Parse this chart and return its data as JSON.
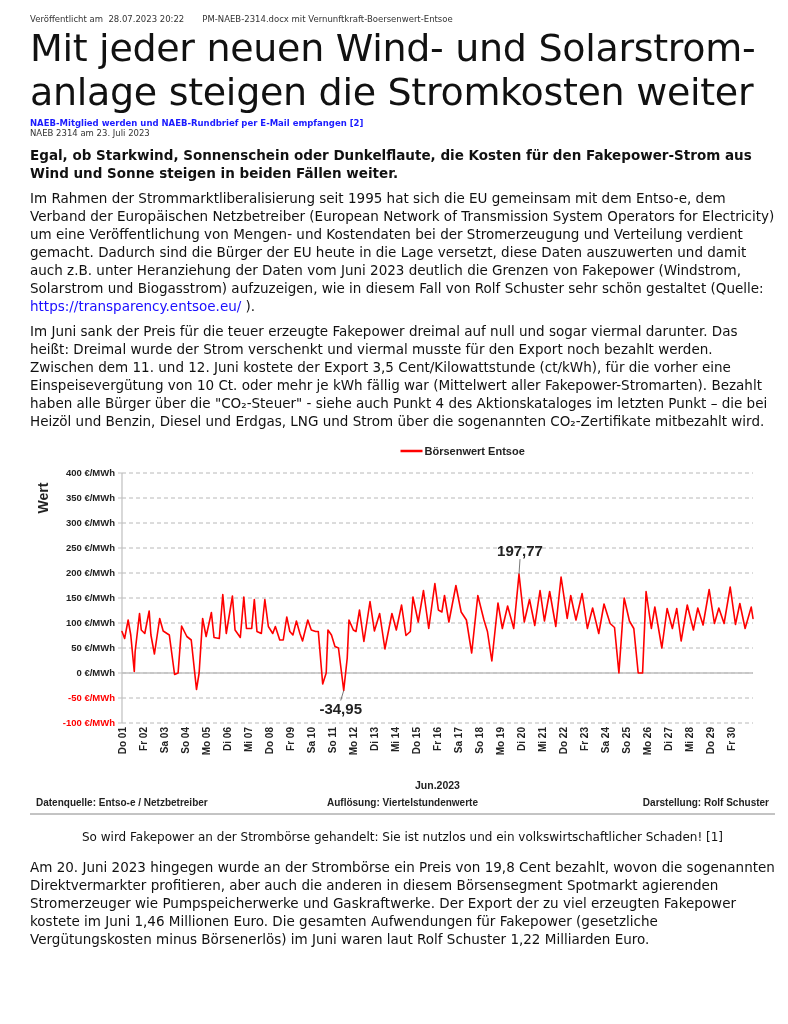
{
  "chart_data": {
    "type": "line",
    "title": "Mit jeder neuen Wind- und Solarstrom-anlage steigen die Stromkosten weiter",
    "subtitle": "Egal, ob Starkwind, Sonnenschein oder Dunkelflaute, die Kosten für den Fakepower-Strom aus Wind und Sonne steigen in beiden Fällen weiter.",
    "xlabel": "Jun.2023",
    "ylabel": "Wert",
    "annotations": [
      "Veröffentlicht am  28.07.2023 20:22",
      "PM-NAEB-2314.docx mit Vernunftkraft-Boersenwert-Entsoe",
      "NAEB-Mitglied werden und NAEB-Rundbrief per E-Mail empfangen [2]",
      "NAEB 2314 am 23. Juli 2023",
      "Im Rahmen der Strommarktliberalisierung seit 1995 hat sich die EU gemeinsam mit dem Entso-e, dem Verband der Europäischen Netzbetreiber (European Network of Transmission System Operators for Electricity) um eine Veröffentlichung von Mengen- und Kostendaten bei der Stromerzeugung und Verteilung verdient gemacht. Dadurch sind die Bürger der EU heute in die Lage versetzt, diese Daten auszuwerten und damit auch z.B. unter Heranziehung der Daten vom Juni 2023 deutlich die Grenzen von Fakepower (Windstrom, Solarstrom und Biogasstrom) aufzuzeigen, wie in diesem Fall von Rolf Schuster sehr schön gestaltet (Quelle: https://transparency.entsoe.eu/ ).",
      "Im Juni sank der Preis für die teuer erzeugte Fakepower dreimal auf null und sogar viermal darunter. Das heißt: Dreimal wurde der Strom verschenkt und viermal musste für den Export noch bezahlt werden. Zwischen dem 11. und 12. Juni kostete der Export 3,5 Cent/Kilowattstunde (ct/kWh), für die vorher eine Einspeisevergütung von 10 Ct. oder mehr je kWh fällig war (Mittelwert aller Fakepower-Stromarten). Bezahlt haben alle Bürger über die \"CO₂-Steuer\" - siehe auch Punkt 4 des Aktionskataloges im letzten Punkt – die bei Heizöl und Benzin, Diesel und Erdgas, LNG und Strom über die sogenannten CO₂-Zertifikate mitbezahlt wird.",
      "Datenquelle: Entso-e / Netzbetreiber",
      "Auflösung: Viertelstundenwerte",
      "Darstellung: Rolf Schuster",
      "So wird Fakepower an der Strombörse gehandelt: Sie ist nutzlos und ein volkswirtschaftlicher Schaden! [1]",
      "Am 20. Juni 2023 hingegen wurde an der Strombörse ein Preis von 19,8 Cent bezahlt, wovon die sogenannten Direktvermarkter profitieren, aber auch die anderen in diesem Börsensegment Spotmarkt agierenden Stromerzeuger wie Pumpspeicherwerke und Gaskraftwerke. Der Export der zu viel erzeugten Fakepower kostete im Juni 1,46 Millionen Euro. Die gesamten Aufwendungen für Fakepower (gesetzliche Vergütungskosten minus Börsenerlös) im Juni waren laut Rolf Schuster 1,22 Milliarden Euro.",
      "197,77",
      {
        "text": "-34,95",
        "x": "2023-06-11T13:00",
        "y": -34.95
      }
    ],
    "series": [
      {
        "name": "Börsenwert Entsoe",
        "color": "#ff0000",
        "x": [
          "2023-06-01T00:00",
          "2023-06-01T03:00",
          "2023-06-01T07:00",
          "2023-06-01T10:00",
          "2023-06-01T14:00",
          "2023-06-01T15:00",
          "2023-06-01T20:00",
          "2023-06-01T22:00",
          "2023-06-02T02:00",
          "2023-06-02T07:00",
          "2023-06-02T09:00",
          "2023-06-02T13:00",
          "2023-06-02T19:00",
          "2023-06-02T23:00",
          "2023-06-03T06:00",
          "2023-06-03T12:00",
          "2023-06-03T16:00",
          "2023-06-03T20:00",
          "2023-06-04T02:00",
          "2023-06-04T07:00",
          "2023-06-04T13:00",
          "2023-06-04T16:00",
          "2023-06-04T20:00",
          "2023-06-05T00:00",
          "2023-06-05T06:00",
          "2023-06-05T09:00",
          "2023-06-05T15:00",
          "2023-06-05T19:00",
          "2023-06-05T23:00",
          "2023-06-06T06:00",
          "2023-06-06T09:00",
          "2023-06-06T15:00",
          "2023-06-06T19:00",
          "2023-06-06T22:00",
          "2023-06-07T04:00",
          "2023-06-07T07:00",
          "2023-06-07T10:00",
          "2023-06-07T15:00",
          "2023-06-07T19:00",
          "2023-06-07T23:00",
          "2023-06-08T04:00",
          "2023-06-08T07:00",
          "2023-06-08T12:00",
          "2023-06-08T16:00",
          "2023-06-08T20:00",
          "2023-06-08T23:30",
          "2023-06-09T03:00",
          "2023-06-09T07:00",
          "2023-06-09T11:00",
          "2023-06-09T14:00",
          "2023-06-09T20:00",
          "2023-06-10T00:00",
          "2023-06-10T05:00",
          "2023-06-10T08:00",
          "2023-06-10T13:00",
          "2023-06-10T17:00",
          "2023-06-10T19:00",
          "2023-06-10T23:00",
          "2023-06-11T03:00",
          "2023-06-11T07:00",
          "2023-06-11T13:00",
          "2023-06-11T17:00",
          "2023-06-11T19:00",
          "2023-06-12T00:00",
          "2023-06-12T03:00",
          "2023-06-12T07:00",
          "2023-06-12T12:00",
          "2023-06-12T19:00",
          "2023-06-13T00:00",
          "2023-06-13T06:00",
          "2023-06-13T12:00",
          "2023-06-13T20:00",
          "2023-06-14T01:00",
          "2023-06-14T07:00",
          "2023-06-14T12:00",
          "2023-06-14T17:00",
          "2023-06-14T20:00",
          "2023-06-15T02:00",
          "2023-06-15T08:00",
          "2023-06-15T14:00",
          "2023-06-15T21:00",
          "2023-06-16T01:00",
          "2023-06-16T05:00",
          "2023-06-16T08:00",
          "2023-06-16T13:00",
          "2023-06-16T21:00",
          "2023-06-17T03:00",
          "2023-06-17T09:00",
          "2023-06-17T15:00",
          "2023-06-17T22:00",
          "2023-06-18T05:00",
          "2023-06-18T09:00",
          "2023-06-18T14:00",
          "2023-06-18T21:00",
          "2023-06-19T02:00",
          "2023-06-19T08:00",
          "2023-06-19T15:00",
          "2023-06-19T21:00",
          "2023-06-20T03:00",
          "2023-06-20T09:00",
          "2023-06-20T15:00",
          "2023-06-20T21:00",
          "2023-06-21T02:00",
          "2023-06-21T08:00",
          "2023-06-21T15:00",
          "2023-06-21T21:00",
          "2023-06-22T04:00",
          "2023-06-22T08:00",
          "2023-06-22T14:00",
          "2023-06-22T21:00",
          "2023-06-23T03:00",
          "2023-06-23T09:00",
          "2023-06-23T16:00",
          "2023-06-23T22:00",
          "2023-06-24T05:00",
          "2023-06-24T10:00",
          "2023-06-24T15:00",
          "2023-06-24T21:00",
          "2023-06-25T03:00",
          "2023-06-25T08:00",
          "2023-06-25T13:00",
          "2023-06-25T18:00",
          "2023-06-25T22:00",
          "2023-06-26T04:00",
          "2023-06-26T08:00",
          "2023-06-26T16:00",
          "2023-06-26T22:00",
          "2023-06-27T04:00",
          "2023-06-27T09:00",
          "2023-06-27T14:00",
          "2023-06-27T21:00",
          "2023-06-28T04:00",
          "2023-06-28T09:00",
          "2023-06-28T15:00",
          "2023-06-28T22:00",
          "2023-06-29T04:00",
          "2023-06-29T09:00",
          "2023-06-29T15:00",
          "2023-06-29T22:00",
          "2023-06-30T04:00",
          "2023-06-30T09:00",
          "2023-06-30T15:00",
          "2023-06-30T22:00",
          "2023-07-01T00:00"
        ],
        "values": [
          83,
          69,
          106,
          76,
          3,
          43,
          119,
          86,
          79,
          124,
          76,
          38,
          109,
          84,
          76,
          -3,
          0,
          94,
          73,
          66,
          -33,
          0,
          109,
          73,
          121,
          71,
          69,
          157,
          79,
          154,
          86,
          71,
          152,
          89,
          89,
          147,
          83,
          79,
          147,
          93,
          79,
          93,
          66,
          66,
          112,
          83,
          76,
          104,
          79,
          64,
          106,
          86,
          83,
          83,
          -22,
          0,
          86,
          76,
          53,
          50,
          -34.95,
          30,
          106,
          86,
          83,
          126,
          63,
          143,
          84,
          119,
          48,
          119,
          86,
          136,
          75,
          83,
          152,
          102,
          165,
          89,
          179,
          126,
          122,
          155,
          102,
          175,
          122,
          106,
          40,
          155,
          106,
          83,
          24,
          140,
          89,
          134,
          89,
          197.77,
          102,
          147,
          95,
          165,
          104,
          163,
          93,
          192,
          109,
          155,
          106,
          159,
          89,
          130,
          79,
          138,
          99,
          91,
          0,
          150,
          104,
          89,
          0,
          0,
          163,
          89,
          132,
          50,
          129,
          89,
          129,
          64,
          136,
          86,
          130,
          96,
          167,
          99,
          130,
          99,
          172,
          97,
          139,
          89,
          132,
          109
        ]
      }
    ],
    "xlim": [
      "2023-06-01",
      "2023-07-01"
    ],
    "xticks": [
      {
        "value": "2023-06-01",
        "label": "Do 01"
      },
      {
        "value": "2023-06-02",
        "label": "Fr 02"
      },
      {
        "value": "2023-06-03",
        "label": "Sa 03"
      },
      {
        "value": "2023-06-04",
        "label": "So 04"
      },
      {
        "value": "2023-06-05",
        "label": "Mo 05"
      },
      {
        "value": "2023-06-06",
        "label": "Di 06"
      },
      {
        "value": "2023-06-07",
        "label": "Mi 07"
      },
      {
        "value": "2023-06-08",
        "label": "Do 08"
      },
      {
        "value": "2023-06-09",
        "label": "Fr 09"
      },
      {
        "value": "2023-06-10",
        "label": "Sa 10"
      },
      {
        "value": "2023-06-11",
        "label": "So 11"
      },
      {
        "value": "2023-06-12",
        "label": "Mo 12"
      },
      {
        "value": "2023-06-13",
        "label": "Di 13"
      },
      {
        "value": "2023-06-14",
        "label": "Mi 14"
      },
      {
        "value": "2023-06-15",
        "label": "Do 15"
      },
      {
        "value": "2023-06-16",
        "label": "Fr 16"
      },
      {
        "value": "2023-06-17",
        "label": "Sa 17"
      },
      {
        "value": "2023-06-18",
        "label": "So 18"
      },
      {
        "value": "2023-06-19",
        "label": "Mo 19"
      },
      {
        "value": "2023-06-20",
        "label": "Di 20"
      },
      {
        "value": "2023-06-21",
        "label": "Mi 21"
      },
      {
        "value": "2023-06-22",
        "label": "Do 22"
      },
      {
        "value": "2023-06-23",
        "label": "Fr 23"
      },
      {
        "value": "2023-06-24",
        "label": "Sa 24"
      },
      {
        "value": "2023-06-25",
        "label": "So 25"
      },
      {
        "value": "2023-06-26",
        "label": "Mo 26"
      },
      {
        "value": "2023-06-27",
        "label": "Di 27"
      },
      {
        "value": "2023-06-28",
        "label": "Mi 28"
      },
      {
        "value": "2023-06-29",
        "label": "Do 29"
      },
      {
        "value": "2023-06-30",
        "label": "Fr 30"
      }
    ],
    "ylim": [
      -100,
      400
    ],
    "yticks": [
      {
        "value": -100,
        "label": "-100 €/MWh"
      },
      {
        "value": -50,
        "label": "-50 €/MWh"
      },
      {
        "value": 0,
        "label": "0 €/MWh"
      },
      {
        "value": 50,
        "label": "50 €/MWh"
      },
      {
        "value": 100,
        "label": "100 €/MWh"
      },
      {
        "value": 150,
        "label": "150 €/MWh"
      },
      {
        "value": 200,
        "label": "200 €/MWh"
      },
      {
        "value": 250,
        "label": "250 €/MWh"
      },
      {
        "value": 300,
        "label": "300 €/MWh"
      },
      {
        "value": 350,
        "label": "350 €/MWh"
      },
      {
        "value": 400,
        "label": "400 €/MWh"
      }
    ],
    "ref_lines": [
      {
        "axis": "y",
        "value": 0,
        "color": "#bfbfbf"
      }
    ],
    "grid": "y",
    "legend": "top"
  }
}
